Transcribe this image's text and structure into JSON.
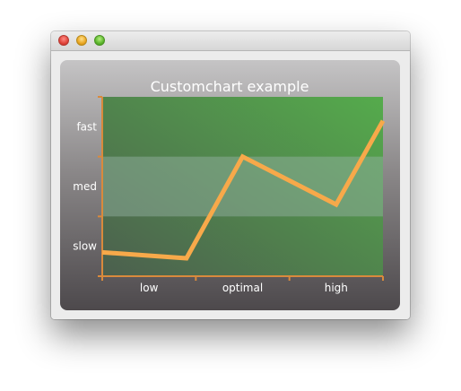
{
  "chart_data": {
    "type": "line",
    "title": "Customchart example",
    "x_categories": [
      "low",
      "optimal",
      "high"
    ],
    "y_categories": [
      "slow",
      "med",
      "fast"
    ],
    "x_range": [
      0,
      150
    ],
    "y_range": [
      0,
      150
    ],
    "series": [
      {
        "x": [
          0,
          45,
          75,
          125,
          150
        ],
        "y": [
          20,
          15,
          100,
          60,
          130
        ]
      }
    ],
    "bands": [
      {
        "y_from": 50,
        "y_to": 100,
        "note": "highlighted med band"
      }
    ],
    "colors": {
      "line": "#f7a94a",
      "axis": "#d98a3c",
      "plot_top_right": "#55a74c",
      "plot_left": "#4f6e52",
      "band": "#9ab3a8",
      "text": "#ffffff"
    }
  }
}
